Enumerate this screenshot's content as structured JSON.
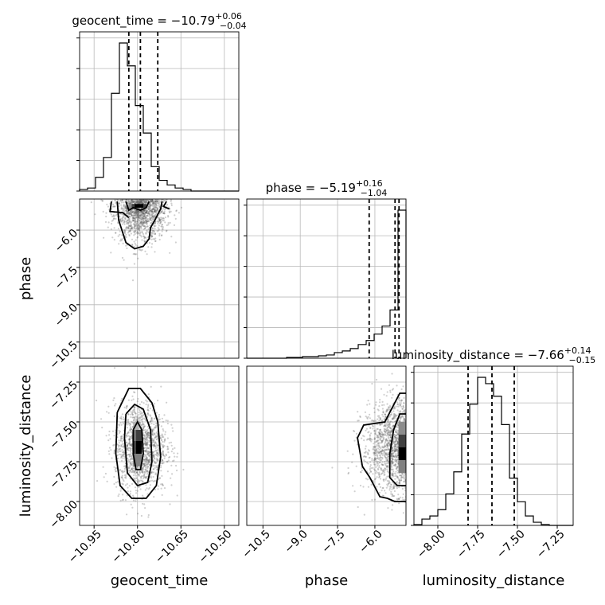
{
  "params": [
    "geocent_time",
    "phase",
    "luminosity_distance"
  ],
  "axis_labels": {
    "x": [
      "geocent_time",
      "phase",
      "luminosity_distance"
    ],
    "y": [
      "phase",
      "luminosity_distance"
    ]
  },
  "titles": [
    {
      "text": "geocent_time = −10.79",
      "sup": "+0.06",
      "sub": "−0.04"
    },
    {
      "text": "phase = −5.19",
      "sup": "+0.16",
      "sub": "−1.04"
    },
    {
      "text": "luminosity_distance = −7.66",
      "sup": "+0.14",
      "sub": "−0.15"
    }
  ],
  "chart_data": {
    "type": "corner",
    "grid": true,
    "ranges": {
      "geocent_time": [
        -11.0,
        -10.45
      ],
      "phase": [
        -11.15,
        -4.75
      ],
      "luminosity_distance": [
        -8.15,
        -7.15
      ]
    },
    "ticks": {
      "geocent_time": [
        {
          "v": -10.95,
          "label": "−10.95"
        },
        {
          "v": -10.8,
          "label": "−10.80"
        },
        {
          "v": -10.65,
          "label": "−10.65"
        },
        {
          "v": -10.5,
          "label": "−10.50"
        }
      ],
      "phase": [
        {
          "v": -10.5,
          "label": "−10.5"
        },
        {
          "v": -9.0,
          "label": "−9.0"
        },
        {
          "v": -7.5,
          "label": "−7.5"
        },
        {
          "v": -6.0,
          "label": "−6.0"
        }
      ],
      "luminosity_distance": [
        {
          "v": -8.0,
          "label": "−8.00"
        },
        {
          "v": -7.75,
          "label": "−7.75"
        },
        {
          "v": -7.5,
          "label": "−7.50"
        },
        {
          "v": -7.25,
          "label": "−7.25"
        }
      ]
    },
    "histograms": [
      {
        "param": "geocent_time",
        "bin_edges": [
          -11.0,
          -10.9725,
          -10.945,
          -10.9175,
          -10.89,
          -10.8625,
          -10.835,
          -10.8075,
          -10.78,
          -10.7525,
          -10.725,
          -10.6975,
          -10.67,
          -10.6425,
          -10.615,
          -10.5875,
          -10.56,
          -10.5325,
          -10.505,
          -10.4775,
          -10.45
        ],
        "counts": [
          0.01,
          0.02,
          0.09,
          0.22,
          0.64,
          0.97,
          0.82,
          0.56,
          0.38,
          0.16,
          0.07,
          0.04,
          0.02,
          0.01,
          0.0,
          0.0,
          0.0,
          0.0,
          0.0,
          0.0
        ],
        "quantiles": [
          -10.83,
          -10.79,
          -10.73
        ]
      },
      {
        "param": "phase",
        "bin_edges": [
          -11.15,
          -10.83,
          -10.51,
          -10.19,
          -9.87,
          -9.55,
          -9.23,
          -8.91,
          -8.59,
          -8.27,
          -7.95,
          -7.63,
          -7.31,
          -6.99,
          -6.67,
          -6.35,
          -6.03,
          -5.71,
          -5.39,
          -5.07,
          -4.75
        ],
        "counts": [
          0.0,
          0.0,
          0.0,
          0.0,
          0.0,
          0.005,
          0.005,
          0.01,
          0.01,
          0.015,
          0.02,
          0.035,
          0.045,
          0.06,
          0.085,
          0.11,
          0.15,
          0.2,
          0.3,
          0.92
        ],
        "quantiles": [
          -6.23,
          -5.19,
          -5.03
        ]
      },
      {
        "param": "luminosity_distance",
        "bin_edges": [
          -8.15,
          -8.1,
          -8.05,
          -8.0,
          -7.95,
          -7.9,
          -7.85,
          -7.8,
          -7.75,
          -7.7,
          -7.65,
          -7.6,
          -7.55,
          -7.5,
          -7.45,
          -7.4,
          -7.35,
          -7.3,
          -7.25,
          -7.2,
          -7.15
        ],
        "counts": [
          0.005,
          0.04,
          0.06,
          0.1,
          0.2,
          0.34,
          0.58,
          0.77,
          0.94,
          0.9,
          0.82,
          0.64,
          0.3,
          0.15,
          0.06,
          0.02,
          0.005,
          0.0,
          0.0,
          0.0
        ],
        "quantiles": [
          -7.81,
          -7.66,
          -7.52
        ]
      }
    ],
    "pairs": [
      {
        "x_param": "geocent_time",
        "y_param": "phase",
        "center": [
          -10.79,
          -5.0
        ],
        "sigma": [
          0.045,
          0.75
        ],
        "contours": [
          [
            [
              -10.84,
              -4.85
            ],
            [
              -10.83,
              -5.2
            ],
            [
              -10.815,
              -5.1
            ],
            [
              -10.79,
              -5.2
            ],
            [
              -10.77,
              -5.1
            ],
            [
              -10.76,
              -4.85
            ]
          ],
          [
            [
              -10.87,
              -4.85
            ],
            [
              -10.865,
              -5.6
            ],
            [
              -10.84,
              -6.5
            ],
            [
              -10.81,
              -6.75
            ],
            [
              -10.78,
              -6.65
            ],
            [
              -10.76,
              -6.35
            ],
            [
              -10.755,
              -5.9
            ],
            [
              -10.74,
              -5.6
            ],
            [
              -10.72,
              -5.15
            ],
            [
              -10.715,
              -4.85
            ]
          ],
          [
            [
              -10.89,
              -4.85
            ],
            [
              -10.895,
              -5.25
            ],
            [
              -10.85,
              -5.3
            ],
            [
              -10.83,
              -5.5
            ]
          ],
          [
            [
              -10.7,
              -4.85
            ],
            [
              -10.71,
              -5.05
            ],
            [
              -10.69,
              -5.15
            ]
          ]
        ],
        "density_cells": [
          {
            "x": [
              -10.83,
              -10.82
            ],
            "y": [
              -4.95,
              -5.1
            ],
            "level": 0.45
          },
          {
            "x": [
              -10.82,
              -10.81
            ],
            "y": [
              -4.95,
              -5.1
            ],
            "level": 0.75
          },
          {
            "x": [
              -10.81,
              -10.78
            ],
            "y": [
              -4.95,
              -5.1
            ],
            "level": 1.0
          },
          {
            "x": [
              -10.78,
              -10.77
            ],
            "y": [
              -4.95,
              -5.1
            ],
            "level": 0.75
          }
        ]
      },
      {
        "x_param": "geocent_time",
        "y_param": "luminosity_distance",
        "center": [
          -10.79,
          -7.66
        ],
        "sigma": [
          0.045,
          0.14
        ],
        "contours": [
          [
            [
              -10.815,
              -7.55
            ],
            [
              -10.8,
              -7.5
            ],
            [
              -10.785,
              -7.55
            ],
            [
              -10.78,
              -7.7
            ],
            [
              -10.79,
              -7.8
            ],
            [
              -10.805,
              -7.8
            ],
            [
              -10.815,
              -7.7
            ],
            [
              -10.815,
              -7.55
            ]
          ],
          [
            [
              -10.84,
              -7.45
            ],
            [
              -10.81,
              -7.39
            ],
            [
              -10.78,
              -7.42
            ],
            [
              -10.755,
              -7.55
            ],
            [
              -10.75,
              -7.75
            ],
            [
              -10.765,
              -7.88
            ],
            [
              -10.8,
              -7.9
            ],
            [
              -10.835,
              -7.82
            ],
            [
              -10.845,
              -7.6
            ],
            [
              -10.84,
              -7.45
            ]
          ],
          [
            [
              -10.87,
              -7.44
            ],
            [
              -10.83,
              -7.29
            ],
            [
              -10.79,
              -7.29
            ],
            [
              -10.75,
              -7.38
            ],
            [
              -10.73,
              -7.5
            ],
            [
              -10.72,
              -7.72
            ],
            [
              -10.735,
              -7.9
            ],
            [
              -10.77,
              -7.98
            ],
            [
              -10.82,
              -7.98
            ],
            [
              -10.86,
              -7.9
            ],
            [
              -10.875,
              -7.7
            ],
            [
              -10.87,
              -7.44
            ]
          ]
        ],
        "density_cells": [
          {
            "x": [
              -10.815,
              -10.795
            ],
            "y": [
              -7.5,
              -7.55
            ],
            "level": 0.3
          },
          {
            "x": [
              -10.815,
              -10.805
            ],
            "y": [
              -7.55,
              -7.62
            ],
            "level": 0.55
          },
          {
            "x": [
              -10.805,
              -10.785
            ],
            "y": [
              -7.55,
              -7.62
            ],
            "level": 0.75
          },
          {
            "x": [
              -10.815,
              -10.805
            ],
            "y": [
              -7.62,
              -7.7
            ],
            "level": 0.75
          },
          {
            "x": [
              -10.805,
              -10.785
            ],
            "y": [
              -7.62,
              -7.7
            ],
            "level": 1.0
          },
          {
            "x": [
              -10.815,
              -10.785
            ],
            "y": [
              -7.7,
              -7.78
            ],
            "level": 0.5
          }
        ]
      },
      {
        "x_param": "phase",
        "y_param": "luminosity_distance",
        "center": [
          -5.0,
          -7.66
        ],
        "sigma": [
          0.75,
          0.14
        ],
        "contours": [
          [
            [
              -4.75,
              -7.32
            ],
            [
              -5.0,
              -7.32
            ],
            [
              -5.6,
              -7.5
            ],
            [
              -6.45,
              -7.52
            ],
            [
              -6.7,
              -7.6
            ],
            [
              -6.5,
              -7.78
            ],
            [
              -6.2,
              -7.85
            ],
            [
              -5.8,
              -7.97
            ],
            [
              -5.5,
              -7.98
            ],
            [
              -5.2,
              -8.0
            ],
            [
              -4.75,
              -8.0
            ]
          ],
          [
            [
              -4.75,
              -7.45
            ],
            [
              -5.0,
              -7.45
            ],
            [
              -5.25,
              -7.55
            ],
            [
              -5.4,
              -7.7
            ],
            [
              -5.4,
              -7.85
            ],
            [
              -5.1,
              -7.9
            ],
            [
              -4.75,
              -7.9
            ]
          ]
        ],
        "density_cells": [
          {
            "x": [
              -5.05,
              -4.75
            ],
            "y": [
              -7.5,
              -7.58
            ],
            "level": 0.45
          },
          {
            "x": [
              -5.05,
              -4.75
            ],
            "y": [
              -7.58,
              -7.66
            ],
            "level": 0.75
          },
          {
            "x": [
              -5.05,
              -4.75
            ],
            "y": [
              -7.66,
              -7.74
            ],
            "level": 1.0
          },
          {
            "x": [
              -5.05,
              -4.75
            ],
            "y": [
              -7.74,
              -7.82
            ],
            "level": 0.5
          }
        ]
      }
    ]
  }
}
